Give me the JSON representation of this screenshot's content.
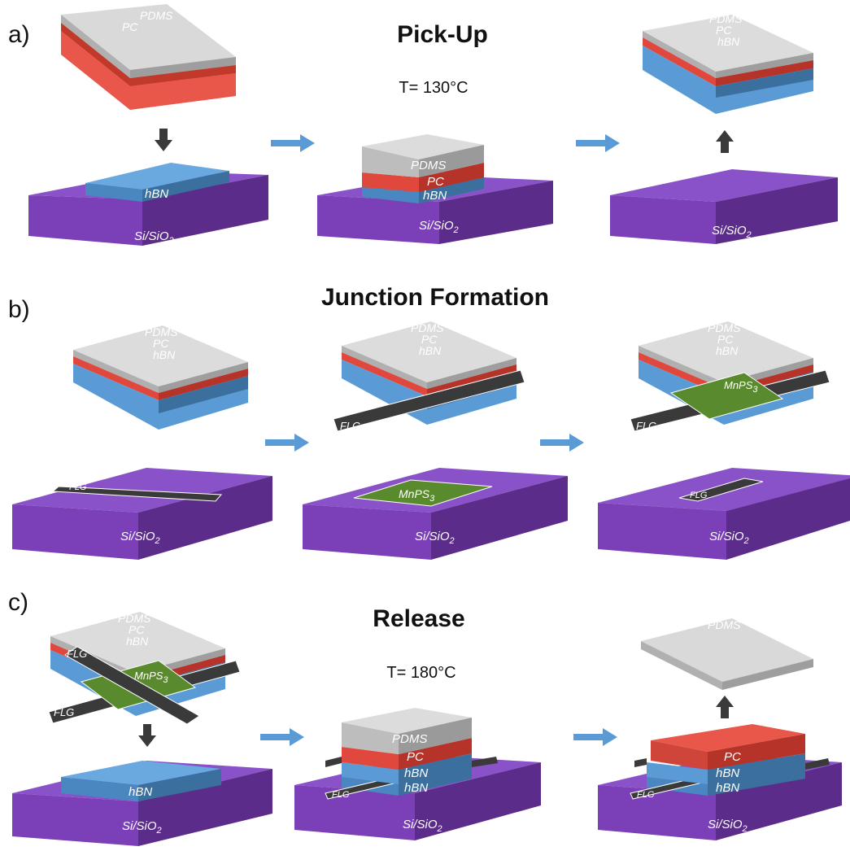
{
  "panels": [
    {
      "letter": "a)",
      "title": "Pick-Up",
      "temperature": "T= 130°C"
    },
    {
      "letter": "b)",
      "title": "Junction Formation"
    },
    {
      "letter": "c)",
      "title": "Release",
      "temperature": "T= 180°C"
    }
  ],
  "labels": {
    "pdms": "PDMS",
    "pc": "PC",
    "hbn": "hBN",
    "flg": "FLG",
    "mnps_base": "MnPS",
    "mnps_sub": "3",
    "sio_base": "Si/SiO",
    "sio_sub": "2"
  },
  "colors": {
    "pdms": "#bdbdbd",
    "pc": "#e0483d",
    "hbn": "#5b9bd5",
    "substrate": "#7b3fb8",
    "flg": "#3a3a3a",
    "mnps": "#5a8a2e",
    "process_arrow": "#5b9bd5",
    "motion_arrow": "#3a3a3a"
  }
}
